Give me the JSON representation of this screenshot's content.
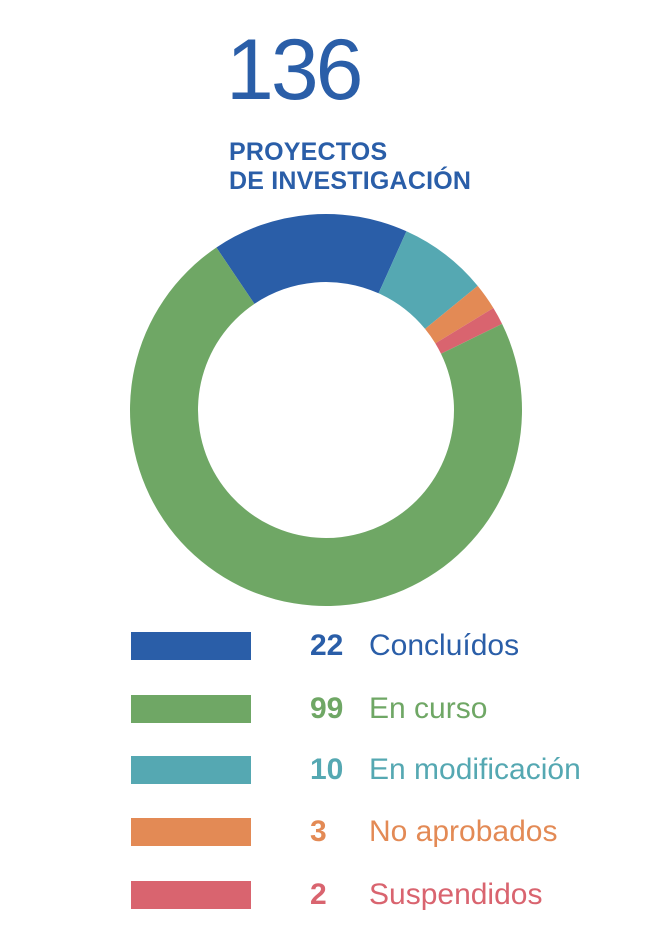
{
  "header": {
    "total": "136",
    "subtitle_line1": "PROYECTOS",
    "subtitle_line2": "DE INVESTIGACIÓN"
  },
  "chart_data": {
    "type": "pie",
    "variant": "donut",
    "total": 136,
    "slices": [
      {
        "count": "22",
        "label": "Concluídos",
        "value": 22,
        "color": "#2a5ea8"
      },
      {
        "count": "99",
        "label": "En curso",
        "value": 99,
        "color": "#6fa765"
      },
      {
        "count": "10",
        "label": "En modificación",
        "value": 10,
        "color": "#55a8b2"
      },
      {
        "count": "3",
        "label": "No aprobados",
        "value": 3,
        "color": "#e38a55"
      },
      {
        "count": "2",
        "label": "Suspendidos",
        "value": 2,
        "color": "#d9646f"
      }
    ],
    "legend_position": "bottom"
  }
}
